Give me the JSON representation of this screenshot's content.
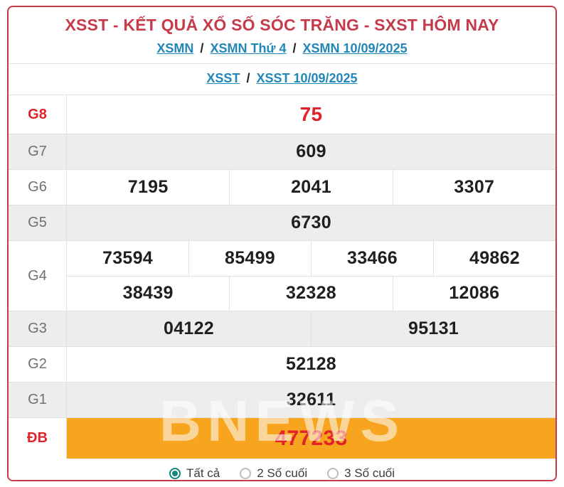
{
  "header": {
    "title": "XSST - KẾT QUẢ XỔ SỐ SÓC TRĂNG - SXST HÔM NAY"
  },
  "breadcrumb1": {
    "separator": "/",
    "links": [
      "XSMN",
      "XSMN Thứ 4",
      "XSMN 10/09/2025"
    ]
  },
  "breadcrumb2": {
    "separator": "/",
    "links": [
      "XSST",
      "XSST 10/09/2025"
    ]
  },
  "results": {
    "rows": [
      {
        "label": "G8",
        "accent": true,
        "special": false,
        "groups": [
          [
            "75"
          ]
        ]
      },
      {
        "label": "G7",
        "accent": false,
        "special": false,
        "groups": [
          [
            "609"
          ]
        ]
      },
      {
        "label": "G6",
        "accent": false,
        "special": false,
        "groups": [
          [
            "7195",
            "2041",
            "3307"
          ]
        ]
      },
      {
        "label": "G5",
        "accent": false,
        "special": false,
        "groups": [
          [
            "6730"
          ]
        ]
      },
      {
        "label": "G4",
        "accent": false,
        "special": false,
        "groups": [
          [
            "73594",
            "85499",
            "33466",
            "49862"
          ],
          [
            "38439",
            "32328",
            "12086"
          ]
        ]
      },
      {
        "label": "G3",
        "accent": false,
        "special": false,
        "groups": [
          [
            "04122",
            "95131"
          ]
        ]
      },
      {
        "label": "G2",
        "accent": false,
        "special": false,
        "groups": [
          [
            "52128"
          ]
        ]
      },
      {
        "label": "G1",
        "accent": false,
        "special": false,
        "groups": [
          [
            "32611"
          ]
        ]
      },
      {
        "label": "ĐB",
        "accent": true,
        "special": true,
        "groups": [
          [
            "477233"
          ]
        ]
      }
    ]
  },
  "footer": {
    "options": [
      {
        "label": "Tất cả",
        "selected": true
      },
      {
        "label": "2 Số cuối",
        "selected": false
      },
      {
        "label": "3 Số cuối",
        "selected": false
      }
    ]
  },
  "watermark": "BNEWS",
  "colors": {
    "brand_red": "#c53b4b",
    "number_red": "#e02229",
    "link_blue": "#2287b8",
    "row_gray": "#ededed",
    "orange": "#f7a41f",
    "teal": "#14857a",
    "text_dark": "#1f1f1f",
    "label_gray": "#707070",
    "line_gray": "#e0e0e0"
  }
}
